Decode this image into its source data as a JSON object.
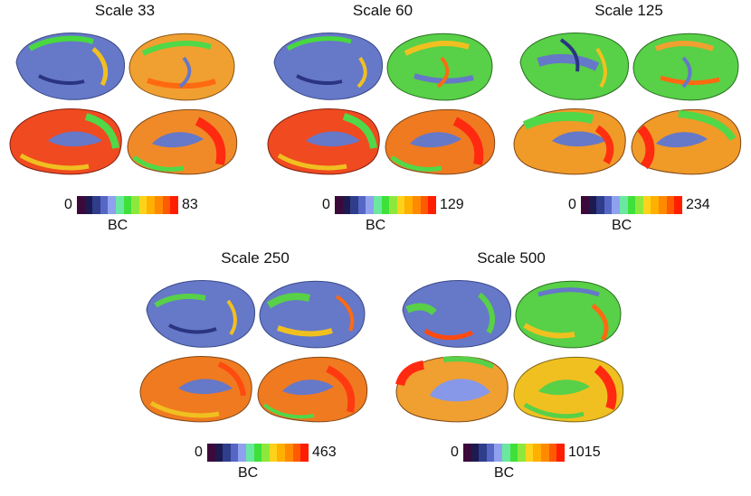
{
  "colorbar_colors": [
    "#3b0a3b",
    "#1c1a50",
    "#2f3d8a",
    "#5566c4",
    "#8fa0ee",
    "#6ae8a0",
    "#3fe03a",
    "#8ee83c",
    "#ffd21a",
    "#ffb000",
    "#ff8a00",
    "#ff5a00",
    "#ff1e00"
  ],
  "panels": [
    {
      "title": "Scale 33",
      "min": "0",
      "max": "83",
      "label": "BC"
    },
    {
      "title": "Scale 60",
      "min": "0",
      "max": "129",
      "label": "BC"
    },
    {
      "title": "Scale 125",
      "min": "0",
      "max": "234",
      "label": "BC"
    },
    {
      "title": "Scale 250",
      "min": "0",
      "max": "463",
      "label": "BC"
    },
    {
      "title": "Scale 500",
      "min": "0",
      "max": "1015",
      "label": "BC"
    }
  ]
}
